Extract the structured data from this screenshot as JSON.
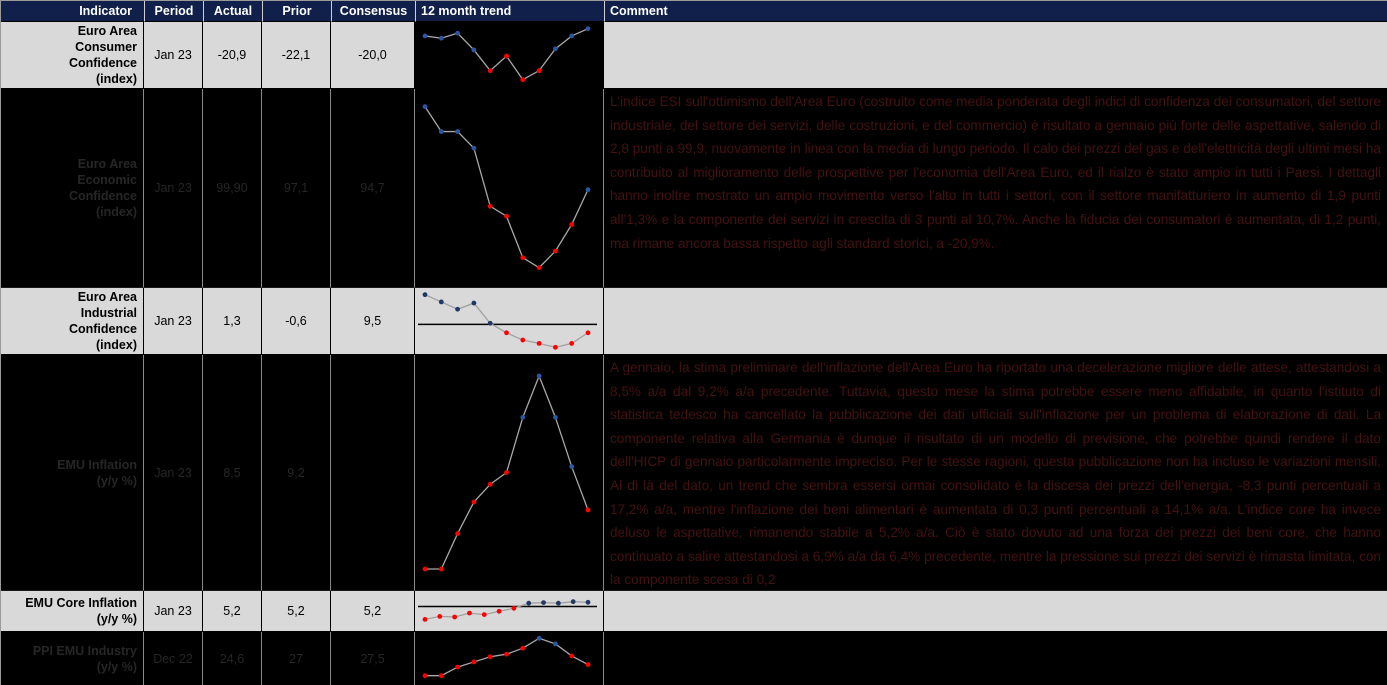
{
  "table": {
    "columns": [
      {
        "label": "Indicator"
      },
      {
        "label": "Period"
      },
      {
        "label": "Actual"
      },
      {
        "label": "Prior"
      },
      {
        "label": "Consensus"
      },
      {
        "label": "12 month trend"
      },
      {
        "label": "Comment"
      }
    ],
    "rows": [
      {
        "indicator": "Euro Area\nConsumer\nConfidence\n(index)",
        "period": "Jan 23",
        "actual": "-20,9",
        "prior": "-22,1",
        "consensus": "-20,0",
        "comment": ""
      },
      {
        "indicator": "Euro Area\nEconomic\nConfidence\n(index)",
        "period": "Jan 23",
        "actual": "99,90",
        "prior": "97,1",
        "consensus": "94,7",
        "comment": "L'indice ESI sull'ottimismo dell'Area Euro (costruito come media ponderata degli indici di confidenza dei consumatori, del settore industriale, del settore dei servizi, delle costruzioni, e del commercio) è risultato a gennaio più forte delle aspettative, salendo di 2,8 punti a 99,9, nuovamente in linea con la media di lungo periodo. Il calo dei prezzi del gas e dell'elettricità degli ultimi mesi ha contribuito al miglioramento delle prospettive per l'economia dell'Area Euro, ed il rialzo è stato ampio in tutti i Paesi. I dettagli hanno inoltre mostrato un ampio movimento verso l'alto in tutti i settori, con il settore manifatturiero in aumento di 1,9 punti all'1,3% e la componente dei servizi in crescita di 3 punti al 10,7%. Anche la fiducia dei consumatori è aumentata, di 1,2 punti, ma rimane ancora bassa rispetto agli standard storici, a -20,9%."
      },
      {
        "indicator": "Euro Area\nIndustrial\nConfidence\n(index)",
        "period": "Jan 23",
        "actual": "1,3",
        "prior": "-0,6",
        "consensus": "9,5",
        "comment": ""
      },
      {
        "indicator": "EMU Inflation\n(y/y %)",
        "period": "Jan 23",
        "actual": "8,5",
        "prior": "9,2",
        "consensus": "",
        "comment": "A gennaio, la stima preliminare dell'inflazione dell'Area Euro ha riportato una decelerazione migliore delle attese, attestandosi a 8,5% a/a dal 9,2% a/a precedente. Tuttavia, questo mese la stima potrebbe essere meno affidabile, in quanto l'istituto di statistica tedesco ha cancellato la pubblicazione dei dati ufficiali sull'inflazione per un problema di elaborazione di dati. La componente relativa alla Germania è dunque il risultato di un modello di previsione, che potrebbe quindi rendere il dato dell'HICP di gennaio particolarmente impreciso. Per le stesse ragioni, questa pubblicazione non ha incluso le variazioni mensili. Al di là del dato, un trend che sembra essersi ormai consolidato è la discesa dei prezzi dell'energia, -8,3 punti percentuali a 17,2% a/a, mentre l'inflazione dei beni alimentari è aumentata di 0,3 punti percentuali a 14,1% a/a. L'indice core ha invece deluso le aspettative, rimanendo stabile a 5,2% a/a. Ciò è stato dovuto ad una forza dei prezzi dei beni core, che hanno continuato a salire attestandosi a 6,9% a/a da 6,4% precedente, mentre la pressione sui prezzi dei servizi è rimasta limitata, con la componente scesa di 0,2"
      },
      {
        "indicator": "EMU Core Inflation\n(y/y %)",
        "period": "Jan 23",
        "actual": "5,2",
        "prior": "5,2",
        "consensus": "5,2",
        "comment": ""
      },
      {
        "indicator": "PPI EMU Industry\n(y/y %)",
        "period": "Dec 22",
        "actual": "24,6",
        "prior": "27",
        "consensus": "27,5",
        "comment": ""
      }
    ]
  },
  "colors": {
    "header_bg": "#11204a",
    "header_text": "#ffffff",
    "light_row_bg": "#d9d9d9",
    "dark_row_bg": "#000000",
    "dark_row_comment_text": "#451111",
    "dot_red": "#ff0000",
    "dot_blue_on_dark": "#2e55a3",
    "dot_blue_on_light": "#1f3864"
  },
  "chart_data": [
    {
      "type": "line",
      "title": "Euro Area Consumer Confidence (index) — 12 month trend",
      "background": "#000000",
      "line_color": "#a8a8a8",
      "baseline_value": null,
      "values_normalized": [
        84,
        80,
        89,
        59,
        22,
        48,
        6,
        22,
        61,
        84,
        97
      ],
      "point_colors": [
        "blue",
        "blue",
        "blue",
        "blue",
        "red",
        "red",
        "red",
        "red",
        "blue",
        "blue",
        "blue"
      ]
    },
    {
      "type": "line",
      "title": "Euro Area Economic Confidence (index) — 12 month trend",
      "background": "#000000",
      "line_color": "#a8a8a8",
      "baseline_value": null,
      "values_normalized": [
        99,
        84,
        84,
        74,
        39,
        33,
        8,
        2,
        12,
        28,
        49
      ],
      "point_colors": [
        "blue",
        "blue",
        "blue",
        "blue",
        "red",
        "red",
        "red",
        "red",
        "red",
        "red",
        "blue"
      ]
    },
    {
      "type": "line",
      "title": "Euro Area Industrial Confidence (index) — 12 month trend",
      "background": "#d9d9d9",
      "line_color": "#a0a0a0",
      "baseline_value": 44,
      "values_normalized": [
        97,
        84,
        71,
        82,
        46,
        29,
        16,
        10,
        3,
        10,
        29
      ],
      "point_colors": [
        "blue",
        "blue",
        "blue",
        "blue",
        "blue",
        "red",
        "red",
        "red",
        "red",
        "red",
        "red"
      ]
    },
    {
      "type": "line",
      "title": "EMU Inflation (y/y %) — 12 month trend",
      "background": "#000000",
      "line_color": "#a8a8a8",
      "baseline_value": null,
      "values_normalized": [
        1,
        1,
        19,
        35,
        44,
        50,
        78,
        99,
        78,
        53,
        31
      ],
      "point_colors": [
        "red",
        "red",
        "red",
        "red",
        "red",
        "red",
        "blue",
        "blue",
        "blue",
        "blue",
        "red"
      ]
    },
    {
      "type": "line",
      "title": "EMU Core Inflation (y/y %) — 12 month trend",
      "background": "#d9d9d9",
      "line_color": "#a0a0a0",
      "baseline_value": 65,
      "values_normalized": [
        22,
        32,
        30,
        43,
        38,
        49,
        59,
        76,
        78,
        76,
        81,
        79
      ],
      "point_colors": [
        "red",
        "red",
        "red",
        "red",
        "red",
        "red",
        "red",
        "blue",
        "blue",
        "blue",
        "blue",
        "blue"
      ]
    },
    {
      "type": "line",
      "title": "PPI EMU Industry (y/y %) — 12 month trend",
      "background": "#000000",
      "line_color": "#a8a8a8",
      "baseline_value": null,
      "values_normalized": [
        10,
        10,
        30,
        42,
        54,
        60,
        74,
        97,
        84,
        56,
        36
      ],
      "point_colors": [
        "red",
        "red",
        "red",
        "red",
        "red",
        "red",
        "red",
        "blue",
        "blue",
        "red",
        "red"
      ]
    }
  ]
}
